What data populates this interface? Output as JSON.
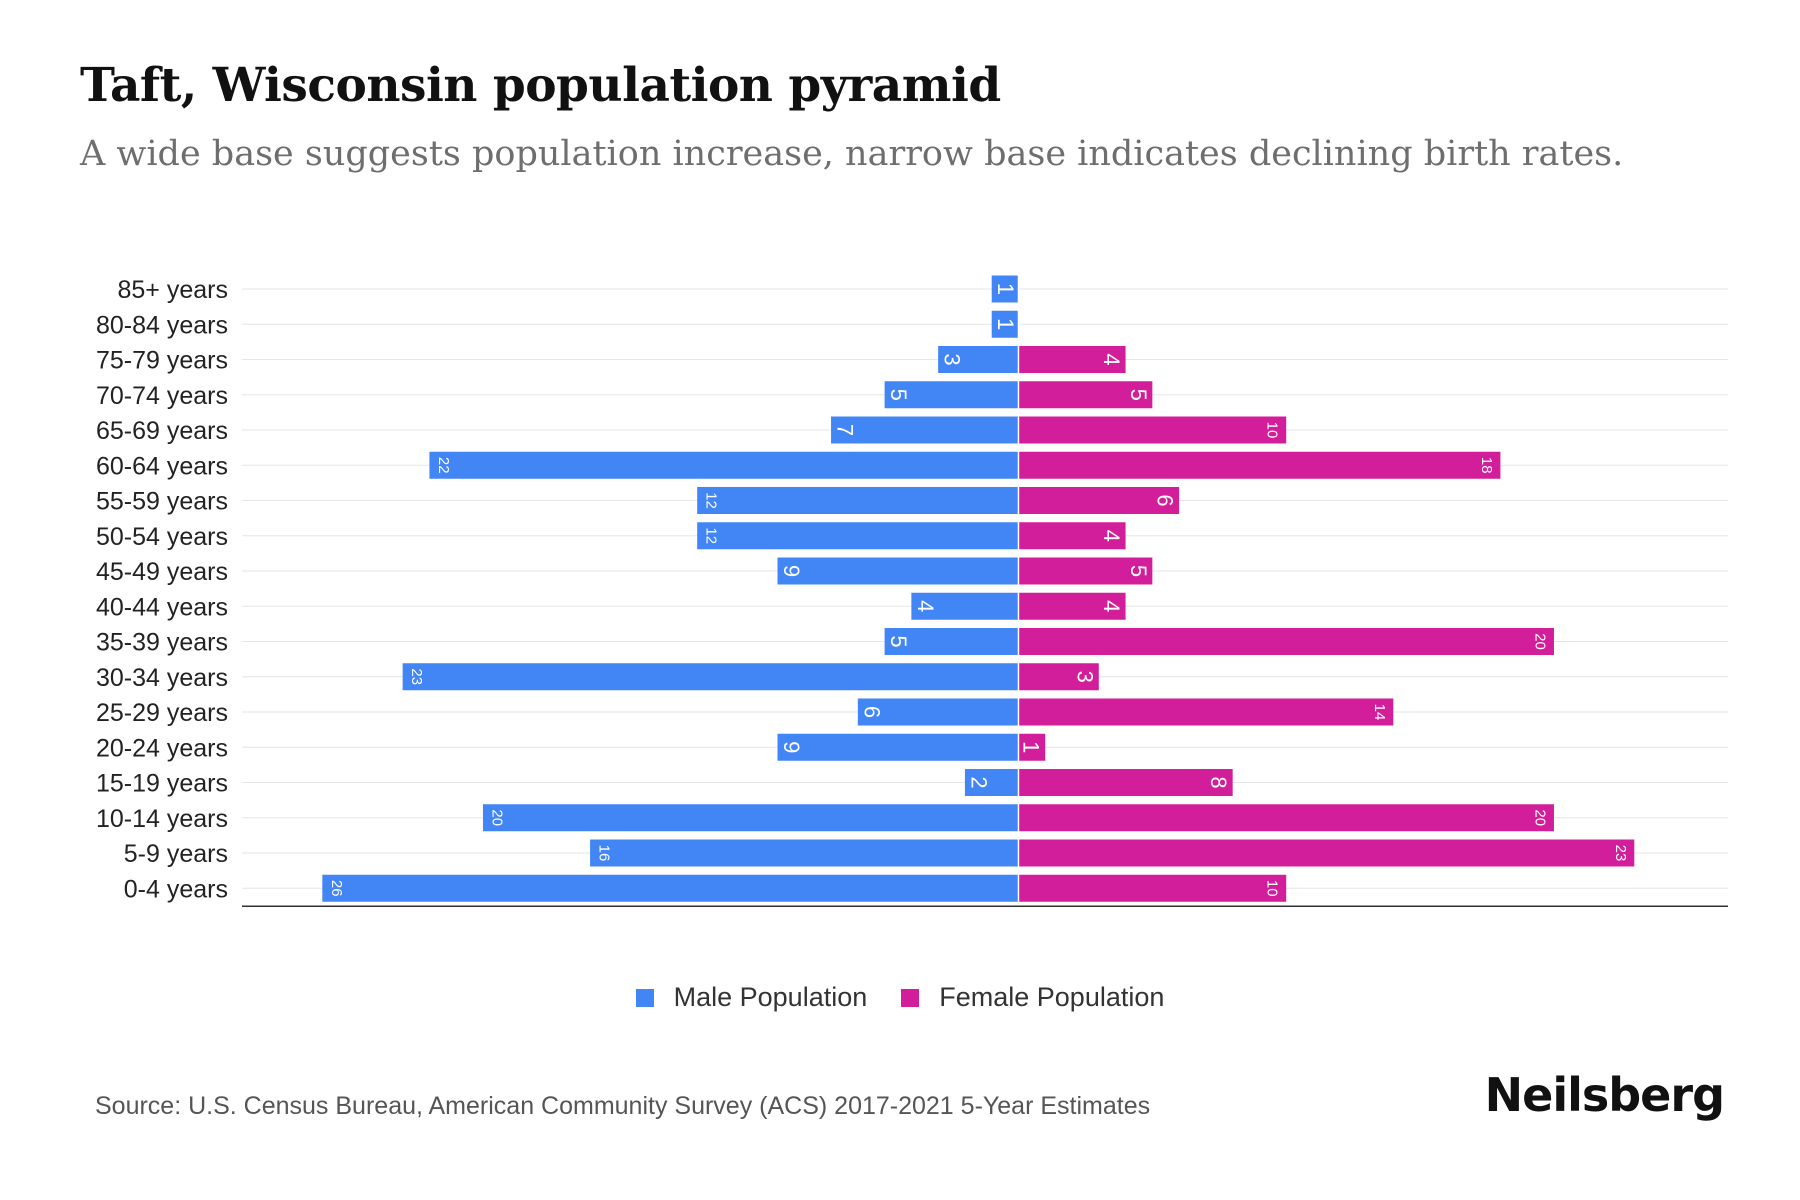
{
  "title": "Taft, Wisconsin population pyramid",
  "subtitle": "A wide base suggests population increase, narrow base indicates declining birth rates.",
  "colors": {
    "male": "#4285F4",
    "female": "#D21E9B"
  },
  "legend": {
    "male_label": "Male Population",
    "female_label": "Female Population"
  },
  "source": "Source: U.S. Census Bureau, American Community Survey (ACS) 2017-2021 5-Year Estimates",
  "brand": "Neilsberg",
  "chart_data": {
    "type": "bar",
    "orientation": "horizontal-pyramid",
    "title": "Taft, Wisconsin population pyramid",
    "categories": [
      "85+ years",
      "80-84 years",
      "75-79 years",
      "70-74 years",
      "65-69 years",
      "60-64 years",
      "55-59 years",
      "50-54 years",
      "45-49 years",
      "40-44 years",
      "35-39 years",
      "30-34 years",
      "25-29 years",
      "20-24 years",
      "15-19 years",
      "10-14 years",
      "5-9 years",
      "0-4 years"
    ],
    "series": [
      {
        "name": "Male Population",
        "values": [
          1,
          1,
          3,
          5,
          7,
          22,
          12,
          12,
          9,
          4,
          5,
          23,
          6,
          9,
          2,
          20,
          16,
          26
        ]
      },
      {
        "name": "Female Population",
        "values": [
          0,
          0,
          4,
          5,
          10,
          18,
          6,
          4,
          5,
          4,
          20,
          3,
          14,
          1,
          8,
          20,
          23,
          10
        ]
      }
    ],
    "xlim": [
      -29,
      26.5
    ],
    "grid": true,
    "legend": "bottom-center"
  }
}
